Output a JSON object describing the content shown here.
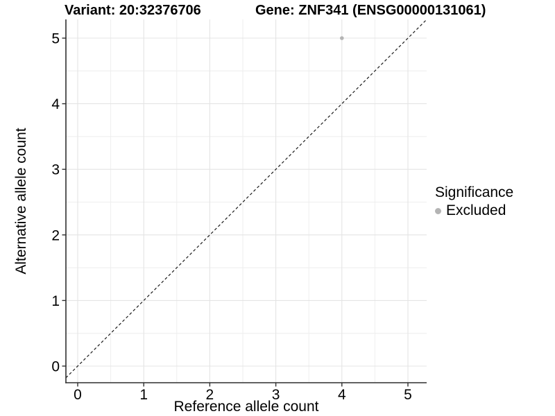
{
  "chart_data": {
    "type": "scatter",
    "title_left": "Variant: 20:32376706",
    "title_right": "Gene: ZNF341 (ENSG00000131061)",
    "xlabel": "Reference allele count",
    "ylabel": "Alternative allele count",
    "x_ticks": [
      0,
      1,
      2,
      3,
      4,
      5
    ],
    "y_ticks": [
      0,
      1,
      2,
      3,
      4,
      5
    ],
    "xlim": [
      -0.18,
      5.28
    ],
    "ylim": [
      -0.25,
      5.29
    ],
    "grid": {
      "show": true,
      "minor_step": 0.5,
      "major_color": "#e4e4e4",
      "minor_color": "#eeeeee"
    },
    "abline": {
      "slope": 1,
      "intercept": 0,
      "linetype": "dashed",
      "color": "#1a1a1a"
    },
    "series": [
      {
        "name": "Excluded",
        "color": "#b4b4b4",
        "points": [
          {
            "x": 4,
            "y": 5
          }
        ]
      }
    ],
    "legend": {
      "title": "Significance",
      "position": "right",
      "entries": [
        {
          "label": "Excluded",
          "color": "#b4b4b4"
        }
      ]
    },
    "background": "#ffffff",
    "axis_color": "#2e2e2e",
    "text_color": "#000000"
  }
}
